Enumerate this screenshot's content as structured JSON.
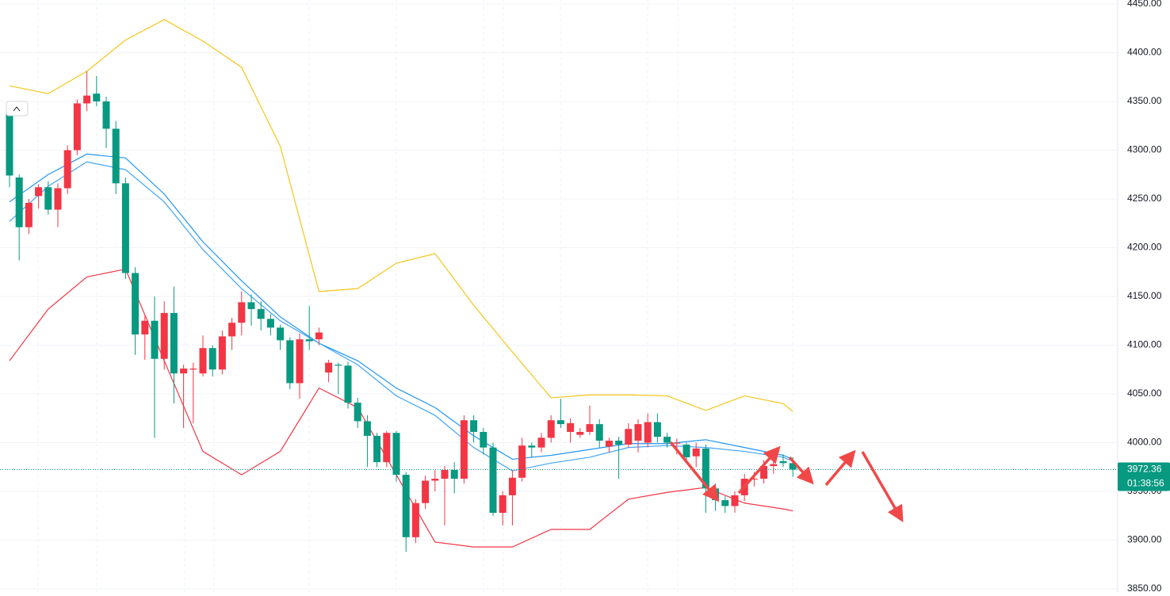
{
  "chart_data": {
    "type": "candlestick",
    "up_color": "#f23645",
    "down_color": "#089981",
    "open": [
      4340,
      4272,
      4221,
      4253,
      4262,
      4239,
      4261,
      4300,
      4348,
      4358,
      4350,
      4322,
      4266,
      4174,
      4111,
      4125,
      4086,
      4133,
      4071,
      4075,
      4071,
      4097,
      4075,
      4109,
      4123,
      4144,
      4137,
      4127,
      4118,
      4105,
      4061,
      4106,
      4106,
      4072,
      4080,
      4079,
      4041,
      4022,
      4007,
      3980,
      4010,
      3967,
      3903,
      3938,
      3961,
      3963,
      3972,
      3963,
      4023,
      4011,
      3995,
      3928,
      3946,
      3964,
      3997,
      3995,
      4005,
      4023,
      4011,
      4008,
      4011,
      4019,
      3996,
      4002,
      3998,
      4002,
      4000,
      4021,
      4006,
      3999,
      3998,
      3986,
      3994,
      3953,
      3941,
      3935,
      3946,
      3963,
      3963,
      3976,
      3981,
      3979
    ],
    "high": [
      4344,
      4275,
      4250,
      4265,
      4268,
      4266,
      4305,
      4352,
      4381,
      4376,
      4355,
      4330,
      4272,
      4180,
      4130,
      4150,
      4145,
      4160,
      4080,
      4082,
      4110,
      4100,
      4115,
      4128,
      4155,
      4152,
      4145,
      4132,
      4121,
      4108,
      4112,
      4140,
      4118,
      4085,
      4082,
      4083,
      4046,
      4028,
      4010,
      4012,
      4012,
      3970,
      3942,
      3966,
      3972,
      3976,
      3980,
      4028,
      4028,
      4015,
      4000,
      3950,
      3972,
      4005,
      4000,
      4010,
      4028,
      4045,
      4025,
      4015,
      4038,
      4024,
      4005,
      4006,
      4020,
      4024,
      4030,
      4030,
      4010,
      4004,
      4000,
      4000,
      3998,
      3958,
      3945,
      3950,
      3968,
      3970,
      3982,
      3985,
      3988,
      3985
    ],
    "low": [
      4262,
      4187,
      4214,
      4240,
      4234,
      4221,
      4255,
      4295,
      4340,
      4345,
      4302,
      4255,
      4168,
      4090,
      4085,
      4005,
      4075,
      4040,
      4015,
      4020,
      4068,
      4068,
      4070,
      4095,
      4110,
      4120,
      4115,
      4110,
      4095,
      4055,
      4045,
      4095,
      4100,
      4062,
      4050,
      4035,
      4015,
      3975,
      3975,
      3975,
      3960,
      3888,
      3897,
      3932,
      3950,
      3915,
      3948,
      3958,
      4000,
      3988,
      3925,
      3915,
      3915,
      3960,
      3985,
      3990,
      4000,
      4015,
      4000,
      4005,
      4008,
      3995,
      3990,
      3963,
      3995,
      3990,
      3995,
      4000,
      3995,
      3988,
      3980,
      3975,
      3928,
      3930,
      3928,
      3928,
      3940,
      3955,
      3958,
      3968,
      3975,
      3965
    ],
    "close": [
      4274,
      4221,
      4246,
      4262,
      4239,
      4261,
      4300,
      4348,
      4356,
      4350,
      4322,
      4266,
      4174,
      4111,
      4125,
      4086,
      4133,
      4071,
      4076,
      4076,
      4097,
      4075,
      4109,
      4123,
      4144,
      4137,
      4127,
      4118,
      4105,
      4061,
      4106,
      4104,
      4113,
      4082,
      4079,
      4041,
      4022,
      4007,
      3980,
      4010,
      3967,
      3903,
      3938,
      3961,
      3963,
      3972,
      3963,
      4023,
      4011,
      3995,
      3928,
      3946,
      3964,
      3997,
      3995,
      4005,
      4023,
      4019,
      4020,
      4011,
      4019,
      4002,
      4002,
      3998,
      4014,
      4019,
      4021,
      4006,
      4000,
      4000,
      3985,
      3994,
      3953,
      3941,
      3935,
      3946,
      3963,
      3963,
      3976,
      3978,
      3979,
      3972.36
    ],
    "lines": [
      {
        "color": "#f5c518",
        "x": [
          0,
          4,
          8,
          12,
          16,
          20,
          24,
          28,
          32,
          36,
          40,
          44,
          48,
          52,
          56,
          60,
          64,
          68,
          72,
          76,
          80,
          81
        ],
        "values": [
          4366,
          4358,
          4381,
          4413,
          4434,
          4412,
          4385,
          4304,
          4155,
          4158,
          4184,
          4194,
          4141,
          4093,
          4046,
          4049,
          4049,
          4048,
          4033,
          4048,
          4040,
          4032
        ]
      },
      {
        "color": "#f23645",
        "x": [
          0,
          4,
          8,
          12,
          16,
          20,
          24,
          28,
          32,
          36,
          40,
          44,
          48,
          52,
          56,
          60,
          64,
          68,
          72,
          76,
          80,
          81
        ],
        "values": [
          4084,
          4137,
          4170,
          4178,
          4084,
          3991,
          3967,
          3991,
          4056,
          4036,
          3967,
          3898,
          3893,
          3893,
          3911,
          3911,
          3942,
          3949,
          3954,
          3938,
          3932,
          3930
        ]
      },
      {
        "color": "#2196f3",
        "x": [
          0,
          4,
          8,
          12,
          16,
          20,
          24,
          28,
          32,
          36,
          40,
          44,
          48,
          52,
          56,
          60,
          64,
          68,
          72,
          76,
          80,
          81
        ],
        "values": [
          4247,
          4275,
          4296,
          4292,
          4255,
          4206,
          4166,
          4129,
          4102,
          4084,
          4056,
          4036,
          4007,
          3983,
          3987,
          3993,
          3999,
          3999,
          4003,
          3995,
          3987,
          3983
        ]
      },
      {
        "color": "#42a5f5",
        "x": [
          0,
          4,
          8,
          12,
          16,
          20,
          24,
          28,
          32,
          36,
          40,
          44,
          48,
          52,
          56,
          60,
          64,
          68,
          72,
          76,
          80,
          81
        ],
        "values": [
          4227,
          4263,
          4288,
          4280,
          4247,
          4198,
          4158,
          4125,
          4102,
          4080,
          4048,
          4028,
          3995,
          3971,
          3979,
          3985,
          3995,
          3997,
          3995,
          3991,
          3985,
          3981
        ]
      }
    ],
    "last_price": 3972.36,
    "countdown": "01:38:56",
    "ylim": [
      3850,
      4450
    ],
    "yticks": [
      {
        "value": 3850,
        "label": "3850.00"
      },
      {
        "value": 3900,
        "label": "3900.00"
      },
      {
        "value": 3950,
        "label": "3950.00"
      },
      {
        "value": 4000,
        "label": "4000.00"
      },
      {
        "value": 4050,
        "label": "4050.00"
      },
      {
        "value": 4100,
        "label": "4100.00"
      },
      {
        "value": 4150,
        "label": "4150.00"
      },
      {
        "value": 4200,
        "label": "4200.00"
      },
      {
        "value": 4250,
        "label": "4250.00"
      },
      {
        "value": 4300,
        "label": "4300.00"
      },
      {
        "value": 4350,
        "label": "4350.00"
      },
      {
        "value": 4400,
        "label": "4400.00"
      },
      {
        "value": 4450,
        "label": "4450.00"
      }
    ],
    "grid": true
  }
}
